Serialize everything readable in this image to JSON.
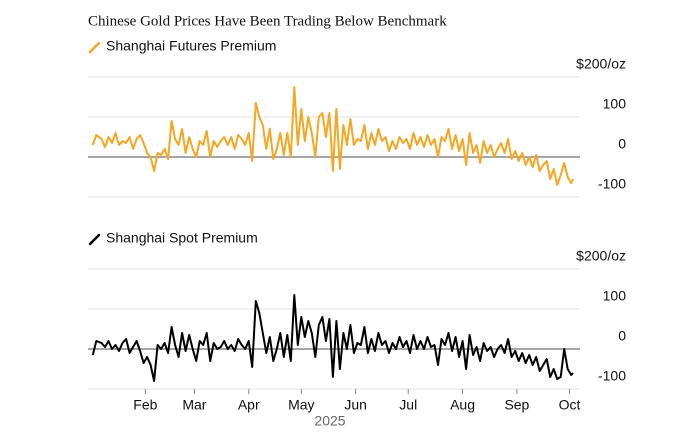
{
  "title": "Chinese Gold Prices Have Been Trading Below Benchmark",
  "chart_data": [
    {
      "type": "line",
      "x": [
        2,
        4,
        7,
        9,
        11,
        13,
        15,
        17,
        19,
        21,
        23,
        25,
        27,
        29,
        31,
        33,
        35,
        37,
        39,
        41,
        43,
        45,
        47,
        49,
        51,
        53,
        55,
        57,
        59,
        61,
        63,
        65,
        67,
        69,
        71,
        73,
        75,
        77,
        79,
        81,
        83,
        85,
        87,
        89,
        91,
        93,
        95,
        97,
        99,
        101,
        103,
        105,
        107,
        109,
        111,
        113,
        115,
        117,
        119,
        121,
        123,
        125,
        127,
        129,
        131,
        133,
        135,
        137,
        139,
        141,
        143,
        145,
        147,
        149,
        151,
        153,
        155,
        157,
        159,
        161,
        163,
        165,
        167,
        169,
        171,
        173,
        175,
        177,
        179,
        181,
        183,
        185,
        187,
        189,
        191,
        193,
        195,
        197,
        199,
        201,
        203,
        205,
        207,
        209,
        211,
        213,
        215,
        217,
        219,
        221,
        223,
        225,
        227,
        229,
        231,
        233,
        235,
        237,
        239,
        241,
        243,
        245,
        247,
        249,
        251,
        253,
        255,
        257,
        259,
        261,
        263,
        265,
        267,
        269,
        271,
        273,
        275,
        276
      ],
      "series": [
        {
          "name": "Shanghai Futures Premium",
          "color": "#f5a623",
          "values": [
            30,
            55,
            45,
            25,
            50,
            35,
            60,
            30,
            40,
            35,
            50,
            20,
            45,
            55,
            35,
            10,
            0,
            -35,
            10,
            5,
            20,
            -5,
            90,
            45,
            30,
            70,
            10,
            50,
            20,
            0,
            40,
            30,
            65,
            0,
            40,
            25,
            40,
            50,
            30,
            50,
            20,
            55,
            45,
            30,
            60,
            -10,
            135,
            100,
            80,
            20,
            70,
            -5,
            20,
            60,
            5,
            60,
            0,
            175,
            30,
            120,
            40,
            100,
            60,
            0,
            100,
            110,
            50,
            110,
            -35,
            120,
            -30,
            80,
            30,
            95,
            30,
            45,
            40,
            80,
            20,
            60,
            30,
            70,
            40,
            50,
            15,
            40,
            20,
            50,
            35,
            45,
            20,
            60,
            30,
            50,
            25,
            55,
            30,
            45,
            0,
            50,
            40,
            70,
            20,
            55,
            15,
            45,
            -20,
            60,
            10,
            30,
            -15,
            40,
            10,
            30,
            0,
            20,
            35,
            10,
            45,
            -5,
            15,
            -10,
            10,
            -20,
            0,
            -25,
            5,
            -35,
            -20,
            -10,
            -55,
            -30,
            -70,
            -45,
            -15,
            -50,
            -65,
            -55
          ]
        }
      ],
      "ylim": [
        -100,
        200
      ],
      "yticks": [
        {
          "value": 200,
          "label": "$200/oz"
        },
        100,
        0,
        -100
      ],
      "xlim": [
        1,
        280
      ]
    },
    {
      "type": "line",
      "x": [
        2,
        4,
        7,
        9,
        11,
        13,
        15,
        17,
        19,
        21,
        23,
        25,
        27,
        29,
        31,
        33,
        35,
        37,
        39,
        41,
        43,
        45,
        47,
        49,
        51,
        53,
        55,
        57,
        59,
        61,
        63,
        65,
        67,
        69,
        71,
        73,
        75,
        77,
        79,
        81,
        83,
        85,
        87,
        89,
        91,
        93,
        95,
        97,
        99,
        101,
        103,
        105,
        107,
        109,
        111,
        113,
        115,
        117,
        119,
        121,
        123,
        125,
        127,
        129,
        131,
        133,
        135,
        137,
        139,
        141,
        143,
        145,
        147,
        149,
        151,
        153,
        155,
        157,
        159,
        161,
        163,
        165,
        167,
        169,
        171,
        173,
        175,
        177,
        179,
        181,
        183,
        185,
        187,
        189,
        191,
        193,
        195,
        197,
        199,
        201,
        203,
        205,
        207,
        209,
        211,
        213,
        215,
        217,
        219,
        221,
        223,
        225,
        227,
        229,
        231,
        233,
        235,
        237,
        239,
        241,
        243,
        245,
        247,
        249,
        251,
        253,
        255,
        257,
        259,
        261,
        263,
        265,
        267,
        269,
        271,
        273,
        275,
        276
      ],
      "series": [
        {
          "name": "Shanghai Spot Premium",
          "color": "#000000",
          "values": [
            -15,
            20,
            15,
            5,
            20,
            0,
            10,
            -5,
            15,
            25,
            -10,
            5,
            20,
            -5,
            -35,
            -20,
            -40,
            -80,
            10,
            0,
            15,
            -10,
            55,
            10,
            -20,
            40,
            -5,
            35,
            0,
            -30,
            20,
            10,
            40,
            -30,
            15,
            0,
            5,
            20,
            0,
            10,
            -5,
            25,
            10,
            0,
            20,
            -45,
            120,
            90,
            40,
            -10,
            30,
            -30,
            0,
            40,
            -20,
            35,
            -30,
            135,
            10,
            80,
            30,
            70,
            40,
            -20,
            60,
            80,
            20,
            75,
            -70,
            70,
            -50,
            40,
            0,
            60,
            -10,
            15,
            10,
            55,
            -10,
            25,
            -5,
            40,
            10,
            20,
            -10,
            15,
            0,
            30,
            5,
            20,
            -10,
            35,
            0,
            20,
            0,
            30,
            5,
            10,
            -40,
            25,
            10,
            40,
            -5,
            30,
            -20,
            20,
            -50,
            35,
            -15,
            5,
            -30,
            15,
            -5,
            5,
            -20,
            0,
            10,
            -10,
            25,
            -20,
            -5,
            -30,
            -10,
            -35,
            -15,
            -40,
            -20,
            -55,
            -40,
            -25,
            -70,
            -50,
            -75,
            -70,
            0,
            -50,
            -65,
            -60
          ]
        }
      ],
      "ylim": [
        -100,
        200
      ],
      "yticks": [
        {
          "value": 200,
          "label": "$200/oz"
        },
        100,
        0,
        -100
      ],
      "xlim": [
        1,
        280
      ],
      "xticks": [
        {
          "value": 32,
          "label": "Feb"
        },
        {
          "value": 60,
          "label": "Mar"
        },
        {
          "value": 91,
          "label": "Apr"
        },
        {
          "value": 121,
          "label": "May"
        },
        {
          "value": 152,
          "label": "Jun"
        },
        {
          "value": 182,
          "label": "Jul"
        },
        {
          "value": 213,
          "label": "Aug"
        },
        {
          "value": 244,
          "label": "Sep"
        },
        {
          "value": 274,
          "label": "Oct"
        }
      ],
      "xlabel": "2025"
    }
  ]
}
